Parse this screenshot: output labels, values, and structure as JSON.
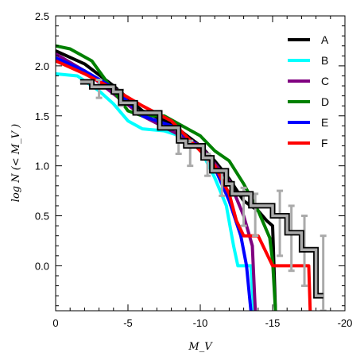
{
  "chart_data": {
    "type": "line",
    "title": "",
    "xlabel": "M_V",
    "ylabel": "log N (< M_V )",
    "xlim": [
      0,
      -20
    ],
    "ylim": [
      -0.45,
      2.5
    ],
    "x_ticks": [
      0,
      -5,
      -10,
      -15,
      -20
    ],
    "x_tick_labels": [
      "0",
      "-5",
      "-10",
      "-15",
      "-20"
    ],
    "y_ticks": [
      0.0,
      0.5,
      1.0,
      1.5,
      2.0,
      2.5
    ],
    "y_tick_labels": [
      "0.0",
      "0.5",
      "1.0",
      "1.5",
      "2.0",
      "2.5"
    ],
    "legend_position": "top-right",
    "series": [
      {
        "name": "A",
        "color": "#000000",
        "points": [
          [
            0,
            2.15
          ],
          [
            -2,
            2.02
          ],
          [
            -4,
            1.8
          ],
          [
            -6,
            1.55
          ],
          [
            -8,
            1.42
          ],
          [
            -10,
            1.2
          ],
          [
            -11,
            1.05
          ],
          [
            -12,
            0.87
          ],
          [
            -13,
            0.65
          ],
          [
            -14,
            0.55
          ],
          [
            -14.6,
            0.45
          ],
          [
            -15,
            0.4
          ],
          [
            -15.2,
            -0.45
          ]
        ]
      },
      {
        "name": "B",
        "color": "#00ffff",
        "points": [
          [
            0,
            1.92
          ],
          [
            -1.5,
            1.9
          ],
          [
            -3,
            1.75
          ],
          [
            -4,
            1.62
          ],
          [
            -5,
            1.45
          ],
          [
            -6,
            1.37
          ],
          [
            -7.5,
            1.35
          ],
          [
            -9,
            1.28
          ],
          [
            -10,
            1.17
          ],
          [
            -11,
            0.88
          ],
          [
            -11.8,
            0.6
          ],
          [
            -12.3,
            0.2
          ],
          [
            -12.6,
            0.0
          ],
          [
            -13.5,
            0.0
          ],
          [
            -13.7,
            -0.45
          ]
        ]
      },
      {
        "name": "C",
        "color": "#800080",
        "points": [
          [
            0,
            2.12
          ],
          [
            -2,
            1.95
          ],
          [
            -4,
            1.72
          ],
          [
            -6,
            1.5
          ],
          [
            -8,
            1.35
          ],
          [
            -10,
            1.2
          ],
          [
            -11,
            1.02
          ],
          [
            -12,
            0.85
          ],
          [
            -13,
            0.5
          ],
          [
            -13.6,
            0.2
          ],
          [
            -13.8,
            -0.45
          ]
        ]
      },
      {
        "name": "D",
        "color": "#008000",
        "points": [
          [
            0,
            2.2
          ],
          [
            -1,
            2.17
          ],
          [
            -2.5,
            2.05
          ],
          [
            -4,
            1.75
          ],
          [
            -5,
            1.55
          ],
          [
            -6,
            1.5
          ],
          [
            -7.5,
            1.5
          ],
          [
            -9,
            1.38
          ],
          [
            -10,
            1.3
          ],
          [
            -11,
            1.15
          ],
          [
            -12,
            1.05
          ],
          [
            -13,
            0.82
          ],
          [
            -14,
            0.55
          ],
          [
            -14.8,
            0.28
          ],
          [
            -15,
            0.05
          ],
          [
            -15.2,
            -0.45
          ]
        ]
      },
      {
        "name": "E",
        "color": "#0000ff",
        "points": [
          [
            0,
            2.08
          ],
          [
            -2,
            1.95
          ],
          [
            -4,
            1.78
          ],
          [
            -6,
            1.5
          ],
          [
            -8,
            1.4
          ],
          [
            -10,
            1.18
          ],
          [
            -11,
            0.98
          ],
          [
            -12,
            0.65
          ],
          [
            -12.8,
            0.3
          ],
          [
            -13.2,
            0.0
          ],
          [
            -13.5,
            -0.45
          ]
        ]
      },
      {
        "name": "F",
        "color": "#ff0000",
        "points": [
          [
            0,
            2.05
          ],
          [
            -2,
            1.92
          ],
          [
            -4,
            1.77
          ],
          [
            -6,
            1.6
          ],
          [
            -8,
            1.45
          ],
          [
            -10,
            1.15
          ],
          [
            -11,
            1.0
          ],
          [
            -12,
            0.72
          ],
          [
            -12.5,
            0.45
          ],
          [
            -13,
            0.3
          ],
          [
            -14,
            0.3
          ],
          [
            -14.5,
            0.15
          ],
          [
            -15,
            0.0
          ],
          [
            -17.5,
            0.0
          ],
          [
            -17.6,
            -0.45
          ]
        ]
      }
    ],
    "observed_histogram": {
      "color": "#000000",
      "fill": "#aaaaaa",
      "error_color": "#aaaaaa",
      "steps": [
        [
          -1.7,
          1.84
        ],
        [
          -2.5,
          1.79
        ],
        [
          -4,
          1.74
        ],
        [
          -4.5,
          1.63
        ],
        [
          -5.5,
          1.53
        ],
        [
          -7.2,
          1.38
        ],
        [
          -8.5,
          1.25
        ],
        [
          -9,
          1.2
        ],
        [
          -10.2,
          1.08
        ],
        [
          -10.8,
          0.95
        ],
        [
          -11.8,
          0.82
        ],
        [
          -12.2,
          0.72
        ],
        [
          -13.5,
          0.6
        ],
        [
          -15,
          0.5
        ],
        [
          -16,
          0.33
        ],
        [
          -17,
          0.16
        ],
        [
          -18,
          -0.3
        ],
        [
          -18.5,
          -0.3
        ]
      ],
      "errors": [
        {
          "x": -3,
          "lo": 1.68,
          "hi": 1.86
        },
        {
          "x": -4.5,
          "lo": 1.6,
          "hi": 1.76
        },
        {
          "x": -8.5,
          "lo": 1.12,
          "hi": 1.3
        },
        {
          "x": -9.3,
          "lo": 1.0,
          "hi": 1.25
        },
        {
          "x": -10.5,
          "lo": 0.9,
          "hi": 1.12
        },
        {
          "x": -11.5,
          "lo": 0.7,
          "hi": 0.96
        },
        {
          "x": -13,
          "lo": 0.4,
          "hi": 0.78
        },
        {
          "x": -13.8,
          "lo": 0.3,
          "hi": 0.72
        },
        {
          "x": -15.5,
          "lo": 0.1,
          "hi": 0.75
        },
        {
          "x": -16.3,
          "lo": -0.05,
          "hi": 0.6
        },
        {
          "x": -17.2,
          "lo": -0.2,
          "hi": 0.5
        },
        {
          "x": -18.5,
          "lo": -0.45,
          "hi": 0.3
        }
      ]
    }
  }
}
